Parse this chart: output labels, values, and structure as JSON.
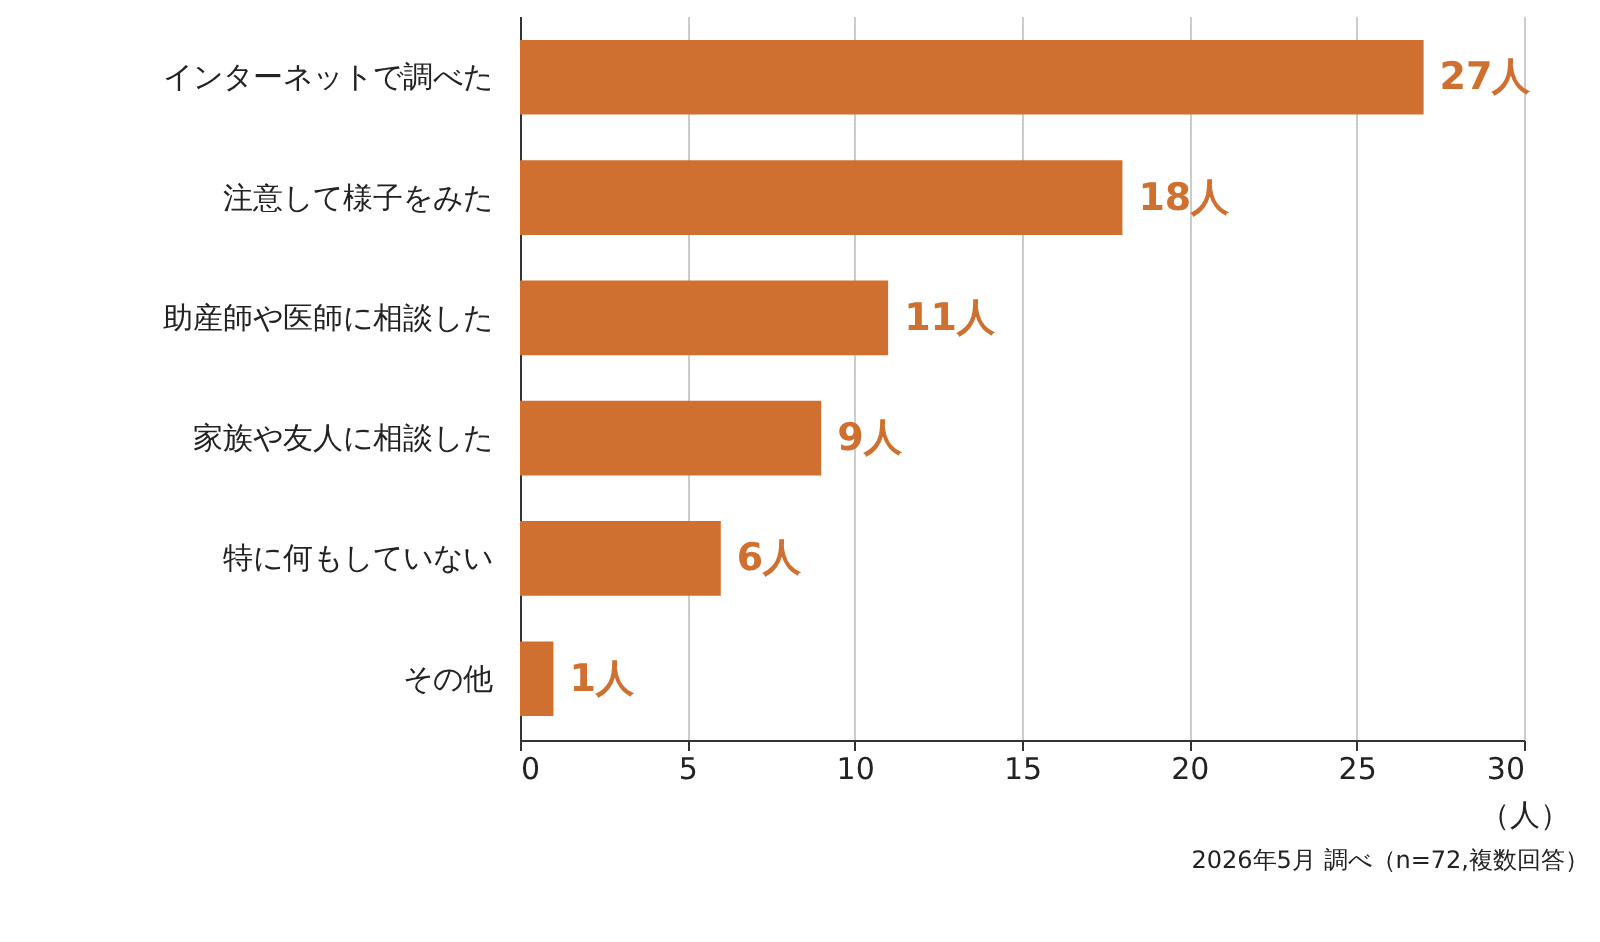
{
  "chart_data": {
    "type": "bar",
    "orientation": "horizontal",
    "categories": [
      "インターネットで調べた",
      "注意して様子をみた",
      "助産師や医師に相談した",
      "家族や友人に相談した",
      "特に何もしていない",
      "その他"
    ],
    "values": [
      27,
      18,
      11,
      9,
      6,
      1
    ],
    "color": "#d07030",
    "value_labels": [
      "27人",
      "18人",
      "11人",
      "9人",
      "6人",
      "1人"
    ],
    "xlim": [
      0,
      30
    ],
    "xticks": [
      0,
      5,
      10,
      15,
      20,
      25,
      30
    ],
    "xlabel": "（人）",
    "grid": "x",
    "annotations": [
      "2026年5月 調べ（n=72,複数回答）"
    ]
  }
}
